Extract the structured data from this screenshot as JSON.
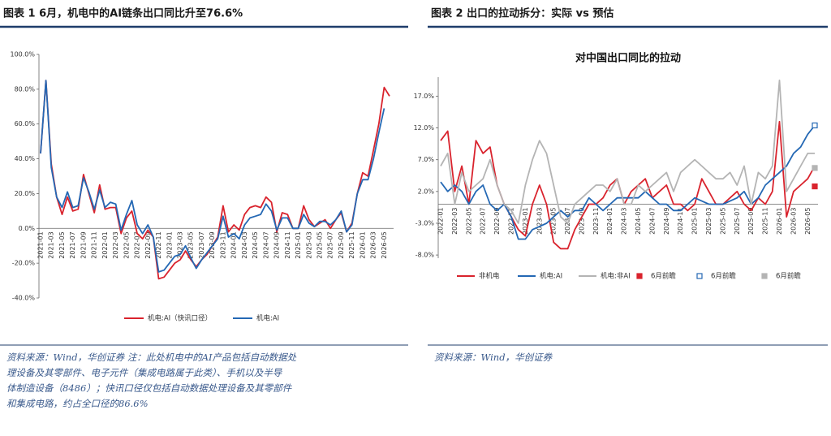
{
  "chart_data": [
    {
      "type": "line",
      "caption": "图表 1 6月，机电中的AI链条出口同比升至76.6%",
      "notes": [
        "资料来源：Wind，华创证券 注：此处机电中的AI产品包括自动数据处",
        "理设备及其零部件、电子元件（集成电路属于此类）、手机以及半导",
        "体制造设备（8486）；快讯口径仅包括自动数据处理设备及其零部件",
        "和集成电路，约占全口径的86.6%"
      ],
      "categories": [
        "2021-01",
        null,
        "2021-03",
        null,
        "2021-05",
        null,
        "2021-07",
        null,
        "2021-09",
        null,
        "2021-11",
        null,
        "2022-01",
        null,
        "2022-03",
        null,
        "2022-05",
        null,
        "2022-07",
        null,
        "2022-09",
        null,
        "2022-11",
        null,
        "2023-01",
        null,
        "2023-03",
        null,
        "2023-05",
        null,
        "2023-07",
        null,
        "2023-09",
        null,
        "2023-11",
        null,
        "2024-01",
        null,
        "2024-03",
        null,
        "2024-05",
        null,
        "2024-07",
        null,
        "2024-09",
        null,
        "2024-11",
        null,
        "2025-01",
        null,
        "2025-03",
        null,
        "2025-05",
        null,
        "2025-07",
        null,
        "2025-09",
        null,
        "2025-11",
        null,
        "2026-01",
        null,
        "2026-03",
        null,
        "2026-05",
        null
      ],
      "series": [
        {
          "name": "机电:AI（快讯口径）",
          "color": "#d9232d",
          "values": [
            43,
            85,
            37,
            18,
            8,
            18,
            10,
            11,
            31,
            20,
            9,
            25,
            11,
            12,
            12,
            -3,
            6,
            10,
            -3,
            -6,
            -1,
            -5,
            -29,
            -28,
            -24,
            -20,
            -18,
            -13,
            -18,
            -22,
            -18,
            -15,
            -10,
            -5,
            13,
            -2,
            2,
            -1,
            8,
            12,
            13,
            12,
            18,
            15,
            -2,
            9,
            8,
            0,
            0,
            13,
            5,
            1,
            3,
            5,
            0,
            5,
            9,
            -2,
            3,
            20,
            32,
            30,
            45,
            60,
            81,
            76
          ]
        },
        {
          "name": "机电:AI",
          "color": "#2468b4",
          "values": [
            43,
            85,
            35,
            18,
            12,
            21,
            12,
            13,
            29,
            21,
            11,
            22,
            12,
            15,
            14,
            -1,
            8,
            16,
            2,
            -3,
            2,
            -5,
            -25,
            -24,
            -20,
            -16,
            -15,
            -10,
            -17,
            -23,
            -18,
            -14,
            -10,
            -6,
            7,
            -5,
            -3,
            -6,
            2,
            6,
            7,
            8,
            14,
            10,
            -1,
            6,
            6,
            0,
            0,
            8,
            3,
            1,
            4,
            4,
            2,
            5,
            10,
            -2,
            2,
            20,
            28,
            28,
            40,
            55,
            69,
            null
          ]
        }
      ],
      "ylim": [
        -40,
        100
      ],
      "yticks": [
        {
          "value": -40,
          "label": "-40.0%"
        },
        {
          "value": -20,
          "label": "-20.0%"
        },
        {
          "value": 0,
          "label": "0.0%"
        },
        {
          "value": 20,
          "label": "20.0%"
        },
        {
          "value": 40,
          "label": "40.0%"
        },
        {
          "value": 60,
          "label": "60.0%"
        },
        {
          "value": 80,
          "label": "80.0%"
        },
        {
          "value": 100,
          "label": "100.0%"
        }
      ],
      "grid": false
    },
    {
      "type": "line",
      "caption": "图表 2 出口的拉动拆分：实际 vs 预估",
      "title": "对中国出口同比的拉动",
      "notes": [
        "资料来源：Wind，华创证券"
      ],
      "categories": [
        "2022-01",
        null,
        "2022-03",
        null,
        "2022-05",
        null,
        "2022-07",
        null,
        "2022-09",
        null,
        "2022-11",
        null,
        "2023-01",
        null,
        "2023-03",
        null,
        "2023-05",
        null,
        "2023-07",
        null,
        "2023-09",
        null,
        "2023-11",
        null,
        "2024-01",
        null,
        "2024-03",
        null,
        "2024-05",
        null,
        "2024-07",
        null,
        "2024-09",
        null,
        "2024-11",
        null,
        "2025-01",
        null,
        "2025-03",
        null,
        "2025-05",
        null,
        "2025-07",
        null,
        "2025-09",
        null,
        "2025-11",
        null,
        "2026-01",
        null,
        "2026-03",
        null,
        "2026-05",
        null
      ],
      "series": [
        {
          "name": "非机电",
          "color": "#d9232d",
          "values": [
            10,
            11.5,
            2,
            6,
            0,
            10,
            8,
            9,
            3,
            0,
            -2,
            -4,
            -5,
            0,
            3,
            0,
            -6,
            -7,
            -7,
            -4,
            -2,
            0,
            0,
            1,
            3,
            4,
            0,
            2,
            3,
            4,
            1,
            2,
            3,
            0,
            0,
            -1,
            0,
            4,
            2,
            0,
            0,
            1,
            2,
            0,
            -1,
            1,
            0,
            2,
            13,
            -2,
            2,
            3,
            4,
            6
          ]
        },
        {
          "name": "机电:AI",
          "color": "#2468b4",
          "values": [
            3.5,
            2,
            3,
            2,
            0,
            2,
            3,
            0,
            -1,
            0,
            -2,
            -5.5,
            -5.5,
            -4,
            -3.5,
            -3,
            -2,
            -1,
            -2,
            -1,
            -1,
            1,
            0,
            -1,
            0,
            1,
            1,
            1,
            1,
            2,
            1,
            0,
            0,
            -1,
            -1,
            0,
            1,
            0.5,
            0,
            0,
            0,
            0.5,
            1,
            2,
            0,
            1,
            3,
            4,
            5,
            6,
            8,
            9,
            11,
            12.4
          ]
        },
        {
          "name": "机电:非AI",
          "color": "#b4b4b4",
          "values": [
            6,
            8,
            0,
            5,
            2,
            3,
            4,
            7,
            3,
            0,
            -1,
            -3,
            3,
            7,
            10,
            8,
            3,
            -2,
            -3,
            0,
            1,
            2,
            3,
            3,
            2,
            4,
            0,
            0,
            3,
            2,
            3,
            4,
            5,
            2,
            5,
            6,
            7,
            6,
            5,
            4,
            4,
            5,
            3,
            6,
            0,
            5,
            4,
            6,
            19.5,
            2,
            4,
            6,
            8,
            8
          ]
        },
        {
          "name": "6月前瞻",
          "color": "#d9232d",
          "marker": "square-filled",
          "values": [
            null,
            null,
            null,
            null,
            null,
            null,
            null,
            null,
            null,
            null,
            null,
            null,
            null,
            null,
            null,
            null,
            null,
            null,
            null,
            null,
            null,
            null,
            null,
            null,
            null,
            null,
            null,
            null,
            null,
            null,
            null,
            null,
            null,
            null,
            null,
            null,
            null,
            null,
            null,
            null,
            null,
            null,
            null,
            null,
            null,
            null,
            null,
            null,
            null,
            null,
            null,
            null,
            null,
            2.8
          ]
        },
        {
          "name": "6月前瞻",
          "color": "#2468b4",
          "marker": "square-open",
          "values": [
            null,
            null,
            null,
            null,
            null,
            null,
            null,
            null,
            null,
            null,
            null,
            null,
            null,
            null,
            null,
            null,
            null,
            null,
            null,
            null,
            null,
            null,
            null,
            null,
            null,
            null,
            null,
            null,
            null,
            null,
            null,
            null,
            null,
            null,
            null,
            null,
            null,
            null,
            null,
            null,
            null,
            null,
            null,
            null,
            null,
            null,
            null,
            null,
            null,
            null,
            null,
            null,
            null,
            12.4
          ]
        },
        {
          "name": "6月前瞻",
          "color": "#b4b4b4",
          "marker": "square-filled",
          "values": [
            null,
            null,
            null,
            null,
            null,
            null,
            null,
            null,
            null,
            null,
            null,
            null,
            null,
            null,
            null,
            null,
            null,
            null,
            null,
            null,
            null,
            null,
            null,
            null,
            null,
            null,
            null,
            null,
            null,
            null,
            null,
            null,
            null,
            null,
            null,
            null,
            null,
            null,
            null,
            null,
            null,
            null,
            null,
            null,
            null,
            null,
            null,
            null,
            null,
            null,
            null,
            null,
            null,
            5.7
          ]
        }
      ],
      "ylim": [
        -8.5,
        20
      ],
      "yticks": [
        {
          "value": -8,
          "label": "-8.0%"
        },
        {
          "value": -3,
          "label": "-3.0%"
        },
        {
          "value": 2,
          "label": "2.0%"
        },
        {
          "value": 7,
          "label": "7.0%"
        },
        {
          "value": 12,
          "label": "12.0%"
        },
        {
          "value": 17,
          "label": "17.0%"
        }
      ],
      "grid": false
    }
  ]
}
